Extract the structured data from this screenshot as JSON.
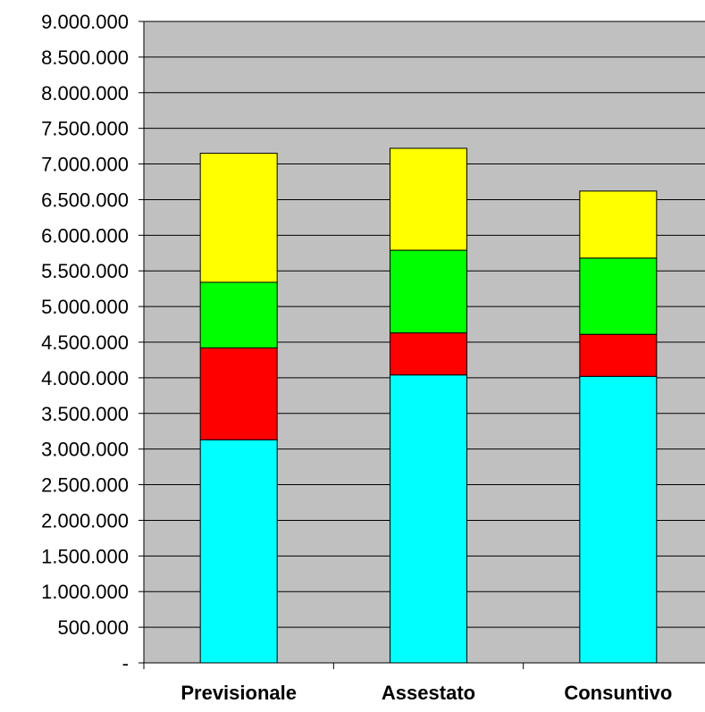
{
  "chart_data": {
    "type": "bar",
    "stacked": true,
    "categories": [
      "Previsionale",
      "Assestato",
      "Consuntivo"
    ],
    "series": [
      {
        "color": "#00ffff",
        "values": [
          3130000,
          4040000,
          4020000
        ]
      },
      {
        "color": "#ff0000",
        "values": [
          1290000,
          590000,
          590000
        ]
      },
      {
        "color": "#00ff00",
        "values": [
          920000,
          1160000,
          1070000
        ]
      },
      {
        "color": "#ffff00",
        "values": [
          1810000,
          1430000,
          940000
        ]
      }
    ],
    "ylim": [
      0,
      9000000
    ],
    "y_ticks": [
      {
        "value": 0,
        "label": "-"
      },
      {
        "value": 500000,
        "label": "500.000"
      },
      {
        "value": 1000000,
        "label": "1.000.000"
      },
      {
        "value": 1500000,
        "label": "1.500.000"
      },
      {
        "value": 2000000,
        "label": "2.000.000"
      },
      {
        "value": 2500000,
        "label": "2.500.000"
      },
      {
        "value": 3000000,
        "label": "3.000.000"
      },
      {
        "value": 3500000,
        "label": "3.500.000"
      },
      {
        "value": 4000000,
        "label": "4.000.000"
      },
      {
        "value": 4500000,
        "label": "4.500.000"
      },
      {
        "value": 5000000,
        "label": "5.000.000"
      },
      {
        "value": 5500000,
        "label": "5.500.000"
      },
      {
        "value": 6000000,
        "label": "6.000.000"
      },
      {
        "value": 6500000,
        "label": "6.500.000"
      },
      {
        "value": 7000000,
        "label": "7.000.000"
      },
      {
        "value": 7500000,
        "label": "7.500.000"
      },
      {
        "value": 8000000,
        "label": "8.000.000"
      },
      {
        "value": 8500000,
        "label": "8.500.000"
      },
      {
        "value": 9000000,
        "label": "9.000.000"
      }
    ],
    "grid": true,
    "plot_background": "#c0c0c0",
    "legend": "none"
  }
}
